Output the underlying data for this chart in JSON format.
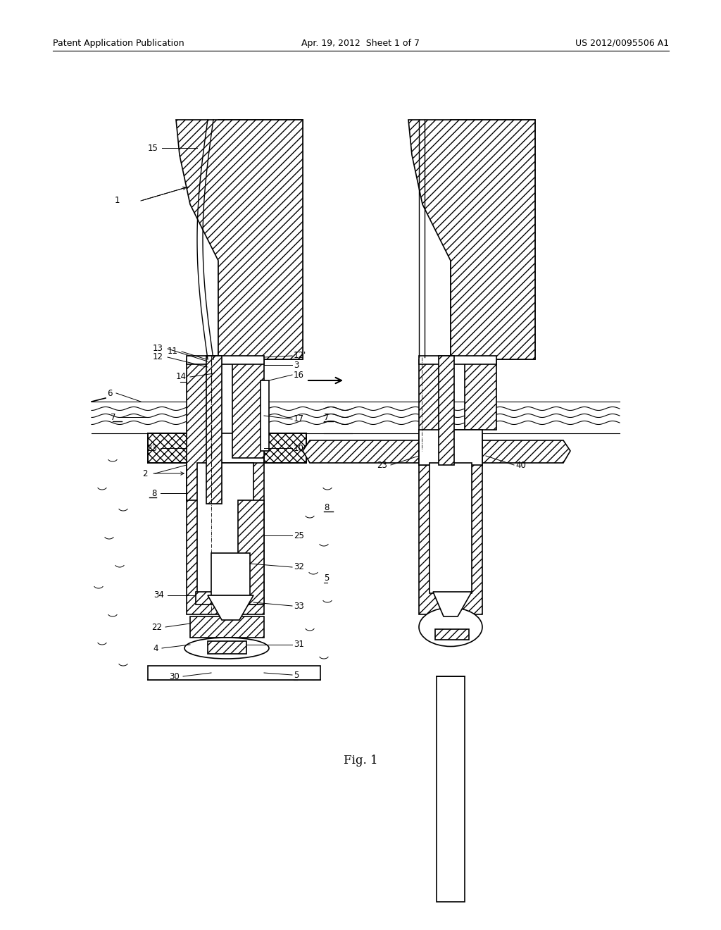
{
  "bg_color": "#ffffff",
  "line_color": "#000000",
  "header_left": "Patent Application Publication",
  "header_mid": "Apr. 19, 2012  Sheet 1 of 7",
  "header_right": "US 2012/0095506 A1",
  "caption": "Fig. 1"
}
